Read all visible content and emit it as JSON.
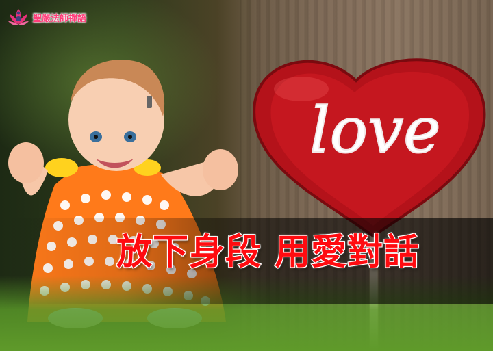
{
  "logo": {
    "text": "聖嚴法師禪語",
    "lotus_color": "#e8327a"
  },
  "photo": {
    "subject_left": "smiling baby in orange polka-dot dress sitting on grass",
    "subject_right": "red heart lollipop on wooden background",
    "heart_text": "love"
  },
  "headline": {
    "text": "放下身段 用愛對話",
    "color": "#ff0b10"
  }
}
